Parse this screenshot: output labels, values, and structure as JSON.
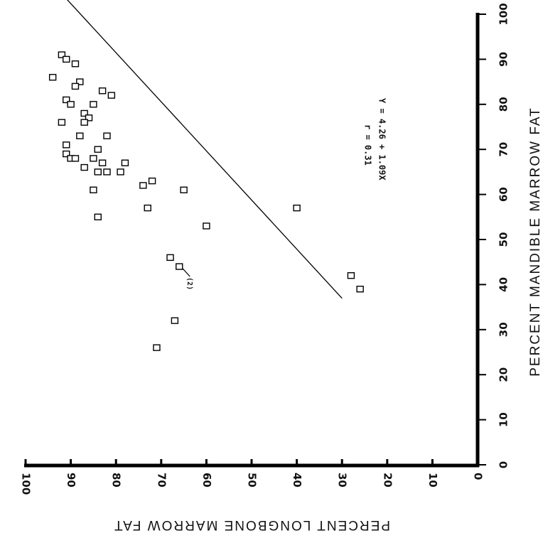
{
  "chart_data": {
    "type": "scatter",
    "orientation": "rotated-90-clockwise",
    "xlabel": "PERCENT LONGBONE MARROW FAT",
    "ylabel": "PERCENT MANDIBLE MARROW FAT",
    "xlim": [
      0,
      100
    ],
    "ylim": [
      0,
      100
    ],
    "x_ticks": [
      "0",
      "10",
      "20",
      "30",
      "40",
      "50",
      "60",
      "70",
      "80",
      "90",
      "100"
    ],
    "y_ticks": [
      "0",
      "10",
      "20",
      "30",
      "40",
      "50",
      "60",
      "70",
      "80",
      "90",
      "100"
    ],
    "points": [
      {
        "x": 94,
        "y": 86
      },
      {
        "x": 92,
        "y": 91
      },
      {
        "x": 91,
        "y": 90
      },
      {
        "x": 89,
        "y": 89
      },
      {
        "x": 88,
        "y": 85
      },
      {
        "x": 89,
        "y": 84
      },
      {
        "x": 83,
        "y": 83
      },
      {
        "x": 81,
        "y": 82
      },
      {
        "x": 91,
        "y": 81
      },
      {
        "x": 90,
        "y": 80
      },
      {
        "x": 85,
        "y": 80
      },
      {
        "x": 87,
        "y": 78
      },
      {
        "x": 86,
        "y": 77
      },
      {
        "x": 92,
        "y": 76
      },
      {
        "x": 87,
        "y": 76
      },
      {
        "x": 88,
        "y": 73
      },
      {
        "x": 82,
        "y": 73
      },
      {
        "x": 91,
        "y": 71
      },
      {
        "x": 84,
        "y": 70
      },
      {
        "x": 91,
        "y": 69
      },
      {
        "x": 90,
        "y": 68
      },
      {
        "x": 89,
        "y": 68
      },
      {
        "x": 85,
        "y": 68
      },
      {
        "x": 83,
        "y": 67
      },
      {
        "x": 78,
        "y": 67
      },
      {
        "x": 87,
        "y": 66
      },
      {
        "x": 84,
        "y": 65
      },
      {
        "x": 82,
        "y": 65
      },
      {
        "x": 79,
        "y": 65
      },
      {
        "x": 72,
        "y": 63
      },
      {
        "x": 74,
        "y": 62
      },
      {
        "x": 85,
        "y": 61
      },
      {
        "x": 65,
        "y": 61
      },
      {
        "x": 73,
        "y": 57
      },
      {
        "x": 40,
        "y": 57
      },
      {
        "x": 84,
        "y": 55
      },
      {
        "x": 60,
        "y": 53
      },
      {
        "x": 68,
        "y": 46
      },
      {
        "x": 66,
        "y": 44
      },
      {
        "x": 28,
        "y": 42
      },
      {
        "x": 26,
        "y": 39
      },
      {
        "x": 67,
        "y": 32
      },
      {
        "x": 71,
        "y": 26
      }
    ],
    "regression": {
      "intercept": 4.26,
      "slope": 1.09,
      "x_range": [
        30,
        92
      ]
    },
    "annotations": {
      "equation": "Y = 4.26 + 1.09X",
      "r_value": "r = 0.31",
      "count_label": "(2)"
    },
    "grid": false,
    "legend": "none"
  }
}
